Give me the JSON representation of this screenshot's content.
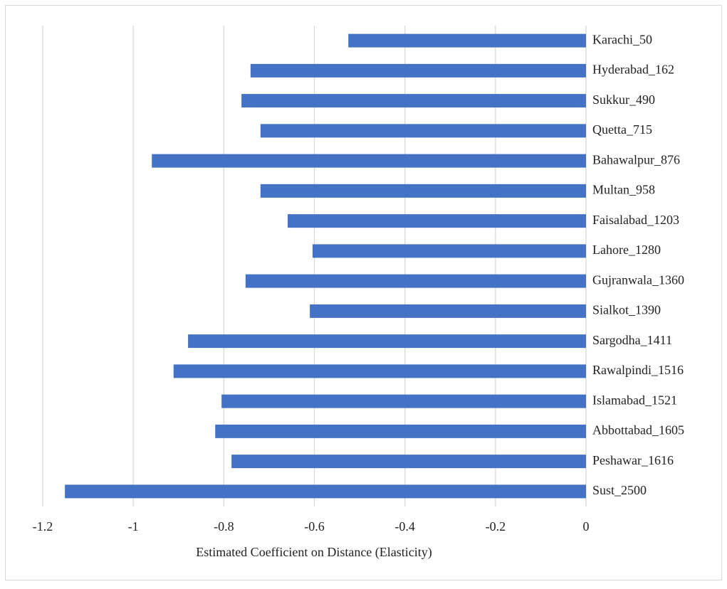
{
  "chart_data": {
    "type": "hbar",
    "x_label": "Estimated Coefficient on Distance (Elasticity)",
    "categories": [
      "Karachi_50",
      "Hyderabad_162",
      "Sukkur_490",
      "Quetta_715",
      "Bahawalpur_876",
      "Multan_958",
      "Faisalabad_1203",
      "Lahore_1280",
      "Gujranwala_1360",
      "Sialkot_1390",
      "Sargodha_1411",
      "Rawalpindi_1516",
      "Islamabad_1521",
      "Abbottabad_1605",
      "Peshawar_1616",
      "Sust_2500"
    ],
    "values": [
      -0.525,
      -0.741,
      -0.761,
      -0.719,
      -0.959,
      -0.719,
      -0.659,
      -0.604,
      -0.752,
      -0.61,
      -0.879,
      -0.911,
      -0.805,
      -0.819,
      -0.783,
      -1.151
    ],
    "color": "#4472c4",
    "xlim": [
      -1.2,
      0
    ],
    "xticks": [
      -1.2,
      -1,
      -0.8,
      -0.6,
      -0.4,
      -0.2,
      0
    ],
    "grid": true
  }
}
